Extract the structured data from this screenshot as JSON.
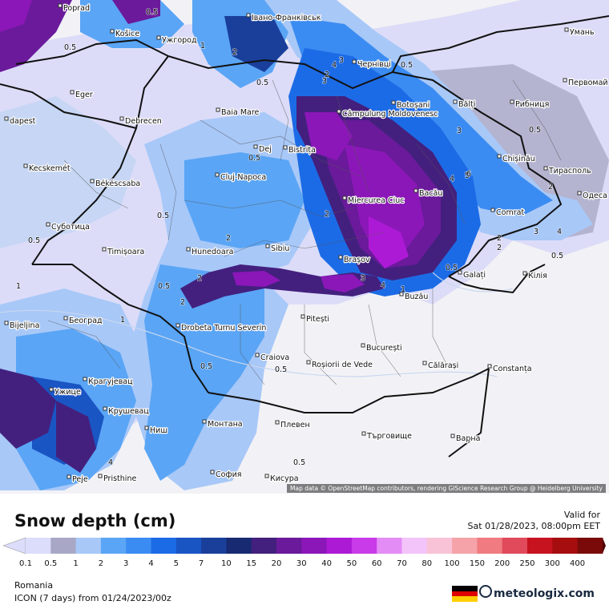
{
  "map": {
    "attribution": "Map data © OpenStreetMap contributors, rendering GIScience Research Group @ Heidelberg University",
    "cities": [
      {
        "name": "Poprad"
      },
      {
        "name": "Košice"
      },
      {
        "name": "Ужгород"
      },
      {
        "name": "Івано-Франківськ"
      },
      {
        "name": "Умань"
      },
      {
        "name": "Чернівці"
      },
      {
        "name": "Первомай"
      },
      {
        "name": "Eger"
      },
      {
        "name": "Baia Mare"
      },
      {
        "name": "Câmpulung Moldovenesc"
      },
      {
        "name": "Botoșani"
      },
      {
        "name": "Bălți"
      },
      {
        "name": "Рибниця"
      },
      {
        "name": "dapest"
      },
      {
        "name": "Debrecen"
      },
      {
        "name": "Dej"
      },
      {
        "name": "Bistrița"
      },
      {
        "name": "Chișinău"
      },
      {
        "name": "Kecskemét"
      },
      {
        "name": "Cluj-Napoca"
      },
      {
        "name": "Тирасполь"
      },
      {
        "name": "Békéscsaba"
      },
      {
        "name": "Miercurea Ciuc"
      },
      {
        "name": "Bacău"
      },
      {
        "name": "Одеса"
      },
      {
        "name": "Суботица"
      },
      {
        "name": "Comrat"
      },
      {
        "name": "Timișoara"
      },
      {
        "name": "Hunedoara"
      },
      {
        "name": "Sibiu"
      },
      {
        "name": "Brașov"
      },
      {
        "name": "Galați"
      },
      {
        "name": "Кілія"
      },
      {
        "name": "Buzău"
      },
      {
        "name": "Bijeljina"
      },
      {
        "name": "Београд"
      },
      {
        "name": "Drobeta Turnu Severin"
      },
      {
        "name": "Pitești"
      },
      {
        "name": "București"
      },
      {
        "name": "Craiova"
      },
      {
        "name": "Roșiorii de Vede"
      },
      {
        "name": "Călărași"
      },
      {
        "name": "Constanța"
      },
      {
        "name": "Крагујевац"
      },
      {
        "name": "Ужице"
      },
      {
        "name": "Крушевац"
      },
      {
        "name": "Ниш"
      },
      {
        "name": "Монтана"
      },
      {
        "name": "Плевен"
      },
      {
        "name": "Търговище"
      },
      {
        "name": "Варна"
      },
      {
        "name": "Pristhine"
      },
      {
        "name": "Peje"
      },
      {
        "name": "София"
      },
      {
        "name": "Кисура"
      }
    ],
    "contour_labels": [
      "0.5",
      "0.5",
      "1",
      "2",
      "0.5",
      "2",
      "3",
      "3",
      "4",
      "0.5",
      "2",
      "0.5",
      "2",
      "0.5",
      "2",
      "0.5",
      "3",
      "4",
      "0.5",
      "2",
      "1",
      "0.5",
      "0.5",
      "1",
      "3",
      "4",
      "0.5",
      "0.5",
      "2",
      "0.5",
      "1",
      "2",
      "3",
      "4",
      "0.5",
      "2",
      "4",
      "5",
      "6"
    ]
  },
  "legend": {
    "title": "Snow depth (cm)",
    "valid_label": "Valid for",
    "valid_date": "Sat 01/28/2023, 08:00pm EET",
    "levels": [
      "0.1",
      "0.5",
      "1",
      "2",
      "3",
      "4",
      "5",
      "7",
      "10",
      "15",
      "20",
      "30",
      "40",
      "50",
      "60",
      "70",
      "80",
      "100",
      "150",
      "200",
      "250",
      "300",
      "400"
    ],
    "colors": [
      "#dcdcfb",
      "#a8a8c6",
      "#a8c8f8",
      "#5aa5f5",
      "#3b8cf2",
      "#1c6be6",
      "#1a55c4",
      "#1a3f9a",
      "#172a72",
      "#43207e",
      "#6a1a9a",
      "#8b17b8",
      "#ad1ad6",
      "#c93ae8",
      "#e48cf6",
      "#f3c4fa",
      "#f8c3d6",
      "#f5a3a9",
      "#f07b80",
      "#e04a5b",
      "#c7121f",
      "#a50d0f",
      "#7a0a0a",
      "#520606"
    ]
  },
  "footer": {
    "region": "Romania",
    "model": "ICON (7 days) from  01/24/2023/00z",
    "brand": "meteologix.com"
  }
}
